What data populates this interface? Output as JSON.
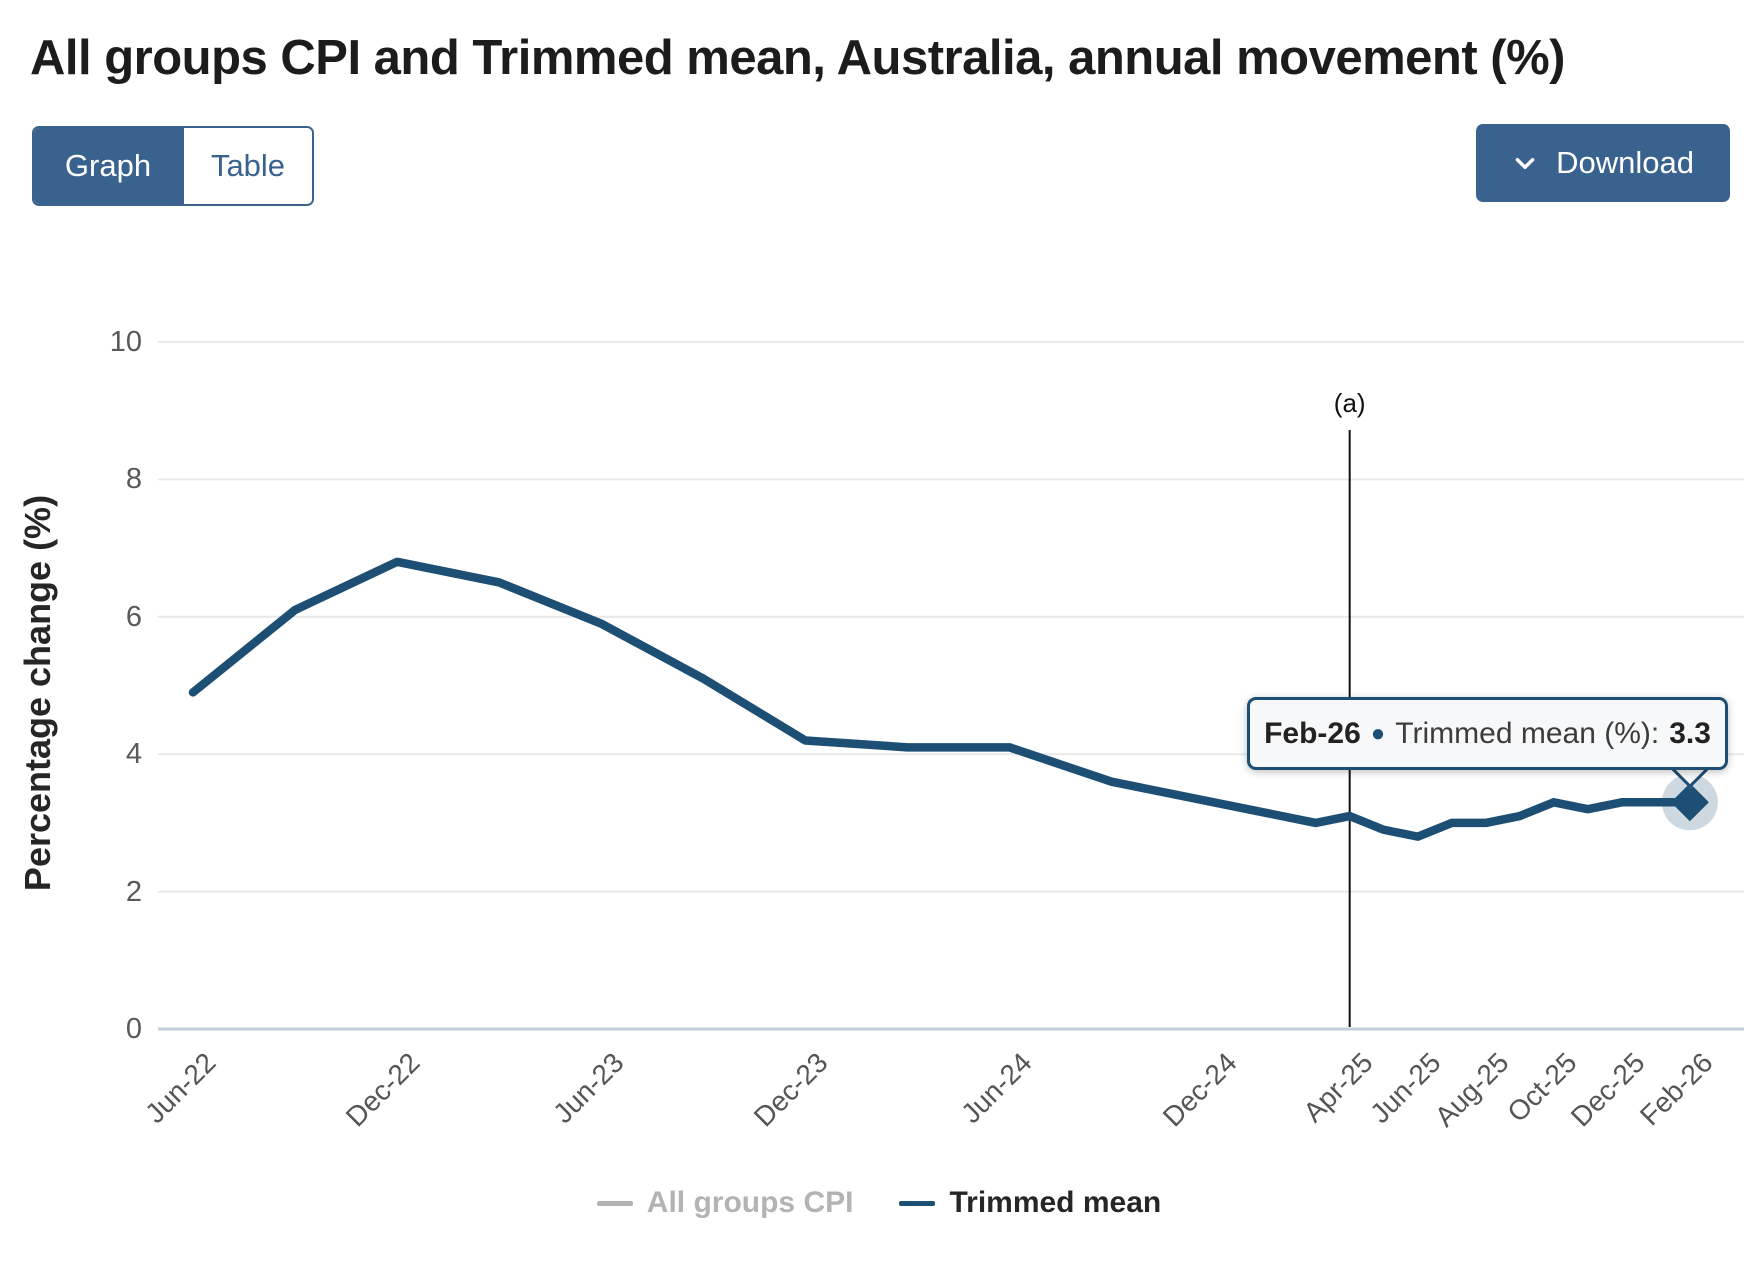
{
  "page": {
    "title": "All groups CPI and Trimmed mean, Australia, annual movement (%)"
  },
  "toolbar": {
    "graph_label": "Graph",
    "table_label": "Table",
    "active_view": "Graph",
    "download_label": "Download",
    "download_icon": "chevron-down"
  },
  "colors": {
    "accent_blue": "#3a628f",
    "line_blue": "#1d4e74",
    "legend_disabled_gray": "#b3b3b3",
    "grid_gray": "#e9e9e9",
    "axis_line": "#c2cddd",
    "tick_text": "#595959",
    "tooltip_bg": "#f7f8f9"
  },
  "chart_data": {
    "type": "line",
    "title": "All groups CPI and Trimmed mean, Australia, annual movement (%)",
    "ylabel": "Percentage change (%)",
    "xlabel": "",
    "ylim": [
      0,
      10
    ],
    "yticks": [
      0,
      2,
      4,
      6,
      8,
      10
    ],
    "grid": "horizontal",
    "x_unit": "months since Jun-22",
    "xticks": [
      {
        "label": "Jun-22",
        "month": 0
      },
      {
        "label": "Dec-22",
        "month": 6
      },
      {
        "label": "Jun-23",
        "month": 12
      },
      {
        "label": "Dec-23",
        "month": 18
      },
      {
        "label": "Jun-24",
        "month": 24
      },
      {
        "label": "Dec-24",
        "month": 30
      },
      {
        "label": "Apr-25",
        "month": 34
      },
      {
        "label": "Jun-25",
        "month": 36
      },
      {
        "label": "Aug-25",
        "month": 38
      },
      {
        "label": "Oct-25",
        "month": 40
      },
      {
        "label": "Dec-25",
        "month": 42
      },
      {
        "label": "Feb-26",
        "month": 44
      }
    ],
    "annotation": {
      "label": "(a)",
      "month": 34
    },
    "legend_position": "bottom-center",
    "legend": [
      {
        "label": "All groups CPI",
        "color": "#b3b3b3",
        "active": false
      },
      {
        "label": "Trimmed mean",
        "color": "#1d4e74",
        "active": true
      }
    ],
    "hidden_series": [
      "All groups CPI"
    ],
    "series": [
      {
        "name": "Trimmed mean",
        "color": "#1d4e74",
        "marker_on_last_point": "diamond",
        "points": [
          {
            "label": "Jun-22",
            "month": 0,
            "value": 4.9
          },
          {
            "label": "Sep-22",
            "month": 3,
            "value": 6.1
          },
          {
            "label": "Dec-22",
            "month": 6,
            "value": 6.8
          },
          {
            "label": "Mar-23",
            "month": 9,
            "value": 6.5
          },
          {
            "label": "Jun-23",
            "month": 12,
            "value": 5.9
          },
          {
            "label": "Sep-23",
            "month": 15,
            "value": 5.1
          },
          {
            "label": "Dec-23",
            "month": 18,
            "value": 4.2
          },
          {
            "label": "Mar-24",
            "month": 21,
            "value": 4.1
          },
          {
            "label": "Jun-24",
            "month": 24,
            "value": 4.1
          },
          {
            "label": "Sep-24",
            "month": 27,
            "value": 3.6
          },
          {
            "label": "Dec-24",
            "month": 30,
            "value": 3.3
          },
          {
            "label": "Mar-25",
            "month": 33,
            "value": 3.0
          },
          {
            "label": "Apr-25",
            "month": 34,
            "value": 3.1
          },
          {
            "label": "May-25",
            "month": 35,
            "value": 2.9
          },
          {
            "label": "Jun-25",
            "month": 36,
            "value": 2.8
          },
          {
            "label": "Jul-25",
            "month": 37,
            "value": 3.0
          },
          {
            "label": "Aug-25",
            "month": 38,
            "value": 3.0
          },
          {
            "label": "Sep-25",
            "month": 39,
            "value": 3.1
          },
          {
            "label": "Oct-25",
            "month": 40,
            "value": 3.3
          },
          {
            "label": "Nov-25",
            "month": 41,
            "value": 3.2
          },
          {
            "label": "Dec-25",
            "month": 42,
            "value": 3.3
          },
          {
            "label": "Jan-26",
            "month": 43,
            "value": 3.3
          },
          {
            "label": "Feb-26",
            "month": 44,
            "value": 3.3
          }
        ]
      }
    ]
  },
  "tooltip": {
    "label": "Feb-26",
    "series_label": "Trimmed mean (%):",
    "value": "3.3"
  }
}
